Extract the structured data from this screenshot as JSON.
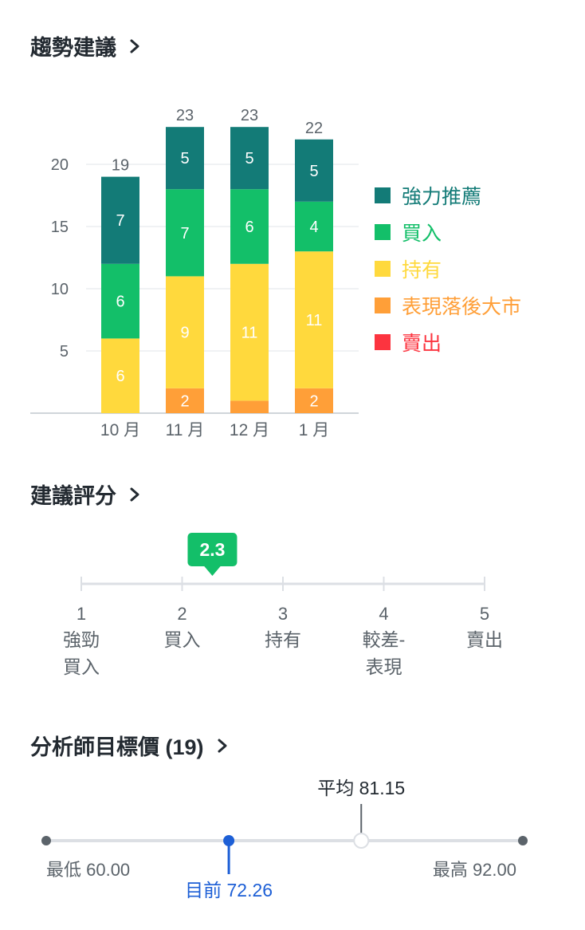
{
  "trend": {
    "title": "趨勢建議",
    "legend": [
      {
        "label": "強力推薦",
        "color": "#137b77"
      },
      {
        "label": "買入",
        "color": "#13bf69"
      },
      {
        "label": "持有",
        "color": "#ffd93d"
      },
      {
        "label": "表現落後大市",
        "color": "#ff9f38"
      },
      {
        "label": "賣出",
        "color": "#fc343f"
      }
    ]
  },
  "chart_data": {
    "type": "bar",
    "stacked": true,
    "categories": [
      "10 月",
      "11 月",
      "12 月",
      "1 月"
    ],
    "series": [
      {
        "name": "表現落後大市",
        "color": "#ff9f38",
        "values": [
          0,
          2,
          1,
          2
        ],
        "labels": [
          "",
          "2",
          "",
          "2"
        ]
      },
      {
        "name": "持有",
        "color": "#ffd93d",
        "values": [
          6,
          9,
          11,
          11
        ],
        "labels": [
          "6",
          "9",
          "11",
          "11"
        ]
      },
      {
        "name": "買入",
        "color": "#13bf69",
        "values": [
          6,
          7,
          6,
          4
        ],
        "labels": [
          "6",
          "7",
          "6",
          "4"
        ]
      },
      {
        "name": "強力推薦",
        "color": "#137b77",
        "values": [
          7,
          5,
          5,
          5
        ],
        "labels": [
          "7",
          "5",
          "5",
          "5"
        ]
      }
    ],
    "totals": [
      "19",
      "23",
      "23",
      "22"
    ],
    "yticks": [
      "5",
      "10",
      "15",
      "20"
    ],
    "ylim": [
      0,
      23
    ],
    "grid": true,
    "legend_position": "right"
  },
  "rating": {
    "title": "建議評分",
    "value": "2.3",
    "value_num": 2.3,
    "badge_color": "#13bf69",
    "scale": [
      {
        "num": "1",
        "label1": "強勁",
        "label2": "買入"
      },
      {
        "num": "2",
        "label1": "買入",
        "label2": ""
      },
      {
        "num": "3",
        "label1": "持有",
        "label2": ""
      },
      {
        "num": "4",
        "label1": "較差-",
        "label2": "表現"
      },
      {
        "num": "5",
        "label1": "賣出",
        "label2": ""
      }
    ]
  },
  "target": {
    "title": "分析師目標價 (19)",
    "low_label": "最低 60.00",
    "high_label": "最高 92.00",
    "avg_label": "平均 81.15",
    "current_label": "目前 72.26",
    "low": 60.0,
    "high": 92.0,
    "avg": 81.15,
    "current": 72.26,
    "current_color": "#1d5fd6"
  }
}
